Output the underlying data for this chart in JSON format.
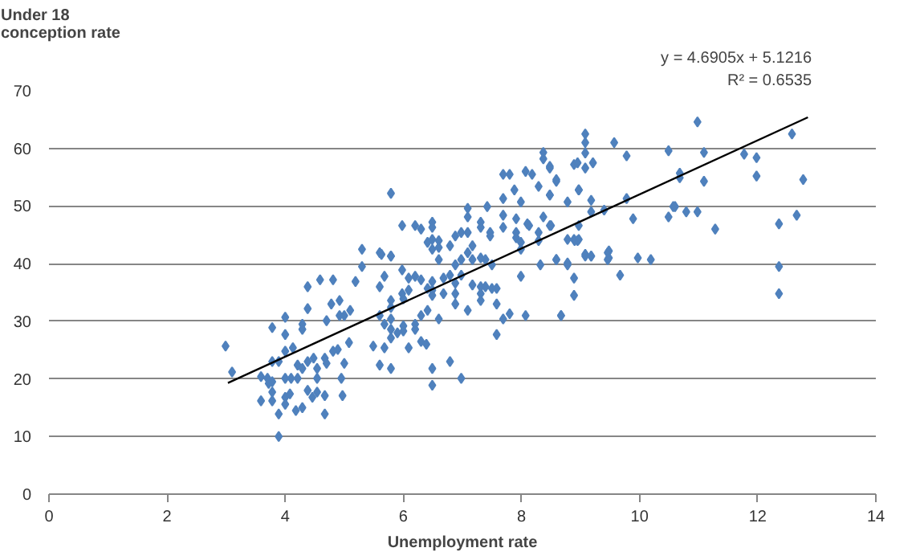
{
  "chart_data": {
    "type": "scatter",
    "ylabel": "Under 18\nconception rate",
    "xlabel": "Unemployment rate",
    "annotations": [
      "y = 4.6905x + 5.1216",
      "R² = 0.6535"
    ],
    "xlim": [
      0,
      14
    ],
    "xticks": [
      0,
      2,
      4,
      6,
      8,
      10,
      12,
      14
    ],
    "ylim": [
      0,
      70
    ],
    "yticks": [
      0,
      10,
      20,
      30,
      40,
      50,
      60,
      70
    ],
    "grid": "y",
    "marker": "diamond",
    "series": [
      {
        "color": "#4f81bd",
        "x": [
          10.98,
          11.09,
          10.68,
          10.68,
          11.09,
          11.77,
          11.98,
          11.98,
          12.58,
          12.77,
          10.6,
          10.79,
          10.98,
          11.28,
          12.36,
          12.66,
          12.36,
          12.36,
          9.08,
          9.08,
          9.08,
          9.08,
          8.89,
          8.95,
          9.21,
          9.57,
          9.78,
          10.49,
          8.48,
          8.59,
          8.48,
          8.97,
          8.78,
          9.18,
          9.18,
          9.4,
          9.78,
          9.89,
          10.49,
          10.57,
          8.5,
          8.97,
          8.78,
          8.9,
          8.95,
          8.59,
          8.78,
          9.08,
          9.18,
          9.48,
          9.48,
          9.97,
          10.19,
          9.67,
          8.89,
          8.89,
          8.67,
          8.37,
          8.37,
          8.48,
          7.69,
          7.8,
          8.07,
          8.18,
          8.59,
          8.29,
          7.88,
          5.79,
          7.69,
          8.48,
          8.97,
          7.42,
          7.09,
          7.99,
          5.98,
          6.2,
          6.3,
          6.49,
          6.49,
          7.09,
          7.31,
          7.31,
          7.47,
          7.47,
          7.69,
          7.69,
          7.91,
          7.91,
          7.91,
          8.1,
          8.13,
          8.37,
          8.48,
          8.29,
          6.41,
          6.49,
          6.49,
          6.6,
          6.6,
          6.6,
          6.79,
          6.88,
          6.98,
          7.09,
          7.17,
          7.17,
          7.31,
          7.39,
          7.5,
          7.09,
          6.98,
          6.88,
          7.99,
          7.99,
          8.29,
          8.59,
          8.78,
          8.32,
          7.99,
          8.89,
          8.97,
          9.08,
          9.18,
          9.46,
          9.46,
          5.6,
          5.79,
          5.98,
          5.68,
          5.6,
          6.09,
          6.2,
          6.3,
          6.09,
          5.98,
          6.0,
          5.79,
          5.79,
          6.41,
          6.49,
          6.49,
          6.49,
          6.68,
          6.79,
          6.68,
          6.88,
          6.88,
          6.88,
          6.98,
          7.17,
          7.31,
          7.39,
          7.5,
          7.58,
          7.31,
          7.31,
          7.58,
          7.69,
          7.8,
          7.58,
          8.07,
          8.67,
          7.09,
          6.6,
          6.41,
          6.3,
          6.2,
          6.2,
          6.0,
          6.0,
          5.79,
          5.79,
          5.79,
          5.9,
          5.68,
          5.6,
          6.3,
          6.39,
          6.09,
          5.68,
          5.49,
          5.6,
          5.79,
          6.49,
          6.49,
          6.79,
          6.98,
          2.99,
          3.1,
          3.59,
          3.7,
          3.72,
          3.78,
          3.78,
          3.59,
          3.78,
          3.89,
          3.89,
          4.0,
          4.18,
          4.29,
          4.0,
          4.08,
          4.38,
          4.46,
          4.54,
          4.67,
          4.67,
          4.97,
          4.54,
          4.1,
          4.21,
          4.0,
          3.78,
          3.89,
          4.0,
          4.13,
          4.21,
          4.29,
          4.38,
          4.48,
          4.54,
          4.67,
          4.7,
          4.81,
          3.78,
          4.0,
          4.0,
          4.29,
          4.29,
          4.38,
          4.38,
          4.59,
          4.81,
          4.78,
          4.7,
          4.92,
          4.92,
          5.0,
          5.1,
          5.08,
          4.89,
          5.0,
          4.95,
          5.19,
          5.3,
          5.3,
          5.63,
          5.79
        ],
        "values": [
          64.6,
          59.3,
          55.7,
          54.9,
          54.3,
          59.0,
          58.4,
          55.2,
          62.5,
          54.6,
          49.9,
          49.0,
          49.0,
          46.0,
          46.9,
          48.4,
          39.5,
          34.8,
          62.5,
          61.0,
          59.2,
          56.6,
          57.2,
          57.5,
          57.5,
          61.0,
          58.7,
          59.6,
          56.9,
          54.6,
          51.9,
          52.8,
          50.7,
          51.0,
          49.0,
          49.3,
          51.3,
          47.8,
          48.1,
          49.9,
          46.6,
          46.6,
          44.2,
          44.0,
          44.0,
          40.7,
          40.1,
          41.6,
          41.3,
          42.2,
          41.0,
          41.0,
          40.7,
          38.0,
          37.5,
          34.5,
          31.0,
          59.3,
          58.2,
          56.6,
          55.5,
          55.5,
          56.0,
          55.5,
          54.3,
          53.4,
          52.8,
          52.2,
          51.3,
          51.9,
          52.8,
          49.9,
          49.6,
          50.7,
          46.6,
          46.6,
          46.0,
          47.2,
          46.3,
          48.1,
          47.2,
          46.3,
          45.4,
          44.8,
          48.4,
          46.3,
          47.8,
          45.4,
          44.5,
          46.9,
          46.6,
          48.1,
          46.6,
          45.4,
          43.7,
          42.5,
          44.2,
          44.0,
          42.8,
          40.7,
          43.1,
          44.8,
          45.4,
          45.4,
          43.1,
          40.7,
          41.0,
          40.7,
          39.8,
          41.9,
          40.7,
          39.8,
          43.7,
          42.5,
          44.0,
          40.7,
          39.8,
          39.8,
          37.8,
          44.2,
          44.2,
          41.3,
          41.3,
          41.9,
          40.7,
          41.9,
          41.3,
          38.9,
          37.8,
          36.0,
          37.5,
          37.8,
          37.2,
          35.4,
          34.8,
          33.9,
          33.6,
          32.4,
          35.7,
          36.9,
          35.4,
          34.5,
          37.5,
          38.0,
          34.8,
          36.6,
          34.8,
          33.0,
          38.0,
          36.3,
          36.0,
          36.0,
          35.7,
          35.7,
          34.8,
          33.6,
          33.0,
          30.4,
          31.3,
          27.7,
          31.0,
          31.0,
          31.9,
          30.4,
          31.9,
          31.0,
          29.5,
          28.6,
          29.2,
          28.3,
          30.4,
          28.6,
          27.1,
          28.0,
          29.5,
          31.0,
          26.5,
          26.0,
          25.4,
          25.4,
          25.7,
          22.4,
          21.8,
          21.8,
          18.9,
          23.0,
          20.1,
          25.7,
          21.2,
          20.4,
          20.1,
          19.2,
          19.5,
          17.7,
          16.2,
          16.2,
          13.9,
          10.0,
          15.6,
          14.5,
          15.0,
          16.8,
          17.4,
          18.0,
          16.8,
          17.7,
          17.1,
          13.9,
          17.1,
          20.1,
          20.1,
          20.1,
          20.1,
          23.0,
          23.0,
          24.8,
          25.4,
          22.4,
          21.8,
          23.0,
          23.6,
          21.8,
          23.6,
          22.7,
          24.8,
          28.9,
          30.7,
          27.7,
          29.5,
          28.6,
          36.0,
          32.2,
          37.2,
          37.2,
          33.0,
          30.1,
          33.6,
          31.0,
          31.0,
          31.9,
          26.3,
          25.1,
          22.7,
          20.1,
          36.9,
          39.5,
          42.5,
          41.6,
          41.3
        ]
      },
      {
        "type": "line",
        "color": "#000000",
        "marker": "none",
        "x": [
          3.03,
          12.85
        ],
        "values": [
          19.3,
          65.4
        ]
      }
    ]
  }
}
